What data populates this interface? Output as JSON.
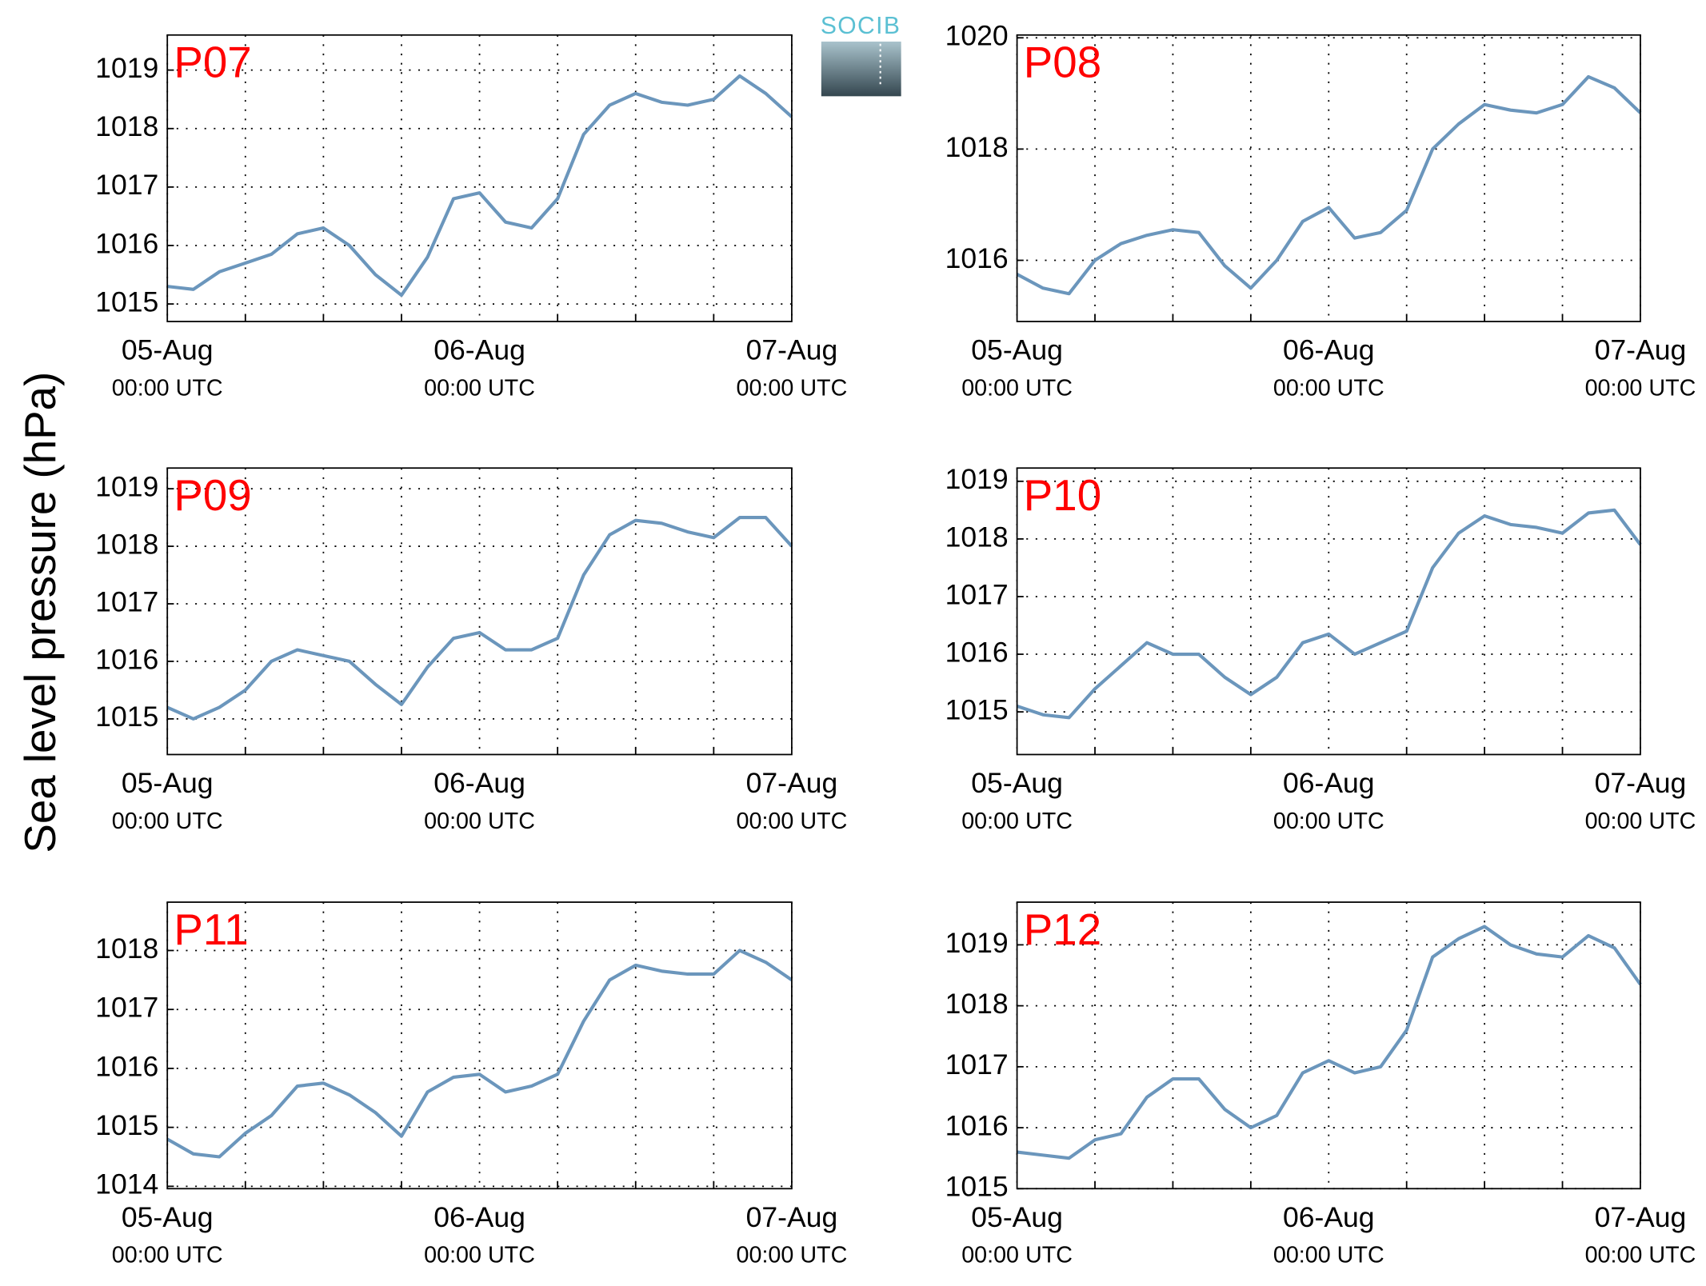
{
  "ylabel": "Sea level pressure (hPa)",
  "logo": "SOCIB",
  "chart_data": [
    {
      "type": "line",
      "title": "P07",
      "color": "#6b96bc",
      "grid": true,
      "x": [
        0,
        2,
        4,
        6,
        8,
        10,
        12,
        14,
        16,
        18,
        20,
        22,
        24,
        26,
        28,
        30,
        32,
        34,
        36,
        38,
        40,
        42,
        44,
        46,
        48
      ],
      "values": [
        1015.3,
        1015.25,
        1015.55,
        1015.7,
        1015.85,
        1016.2,
        1016.3,
        1016.0,
        1015.5,
        1015.15,
        1015.8,
        1016.8,
        1016.9,
        1016.4,
        1016.3,
        1016.8,
        1017.9,
        1018.4,
        1018.6,
        1018.45,
        1018.4,
        1018.5,
        1018.9,
        1018.6,
        1018.2
      ],
      "xlim": [
        0,
        48
      ],
      "xminor": [
        6,
        12,
        18,
        30,
        36,
        42
      ],
      "xticks": [
        {
          "value": 0,
          "label": [
            "05-Aug",
            "00:00 UTC"
          ]
        },
        {
          "value": 24,
          "label": [
            "06-Aug",
            "00:00 UTC"
          ]
        },
        {
          "value": 48,
          "label": [
            "07-Aug",
            "00:00 UTC"
          ]
        }
      ],
      "ylim": [
        1014.7,
        1019.6
      ],
      "yticks": [
        1015,
        1016,
        1017,
        1018,
        1019
      ]
    },
    {
      "type": "line",
      "title": "P08",
      "color": "#6b96bc",
      "grid": true,
      "x": [
        0,
        2,
        4,
        6,
        8,
        10,
        12,
        14,
        16,
        18,
        20,
        22,
        24,
        26,
        28,
        30,
        32,
        34,
        36,
        38,
        40,
        42,
        44,
        46,
        48
      ],
      "values": [
        1015.75,
        1015.5,
        1015.4,
        1016.0,
        1016.3,
        1016.45,
        1016.55,
        1016.5,
        1015.9,
        1015.5,
        1016.0,
        1016.7,
        1016.95,
        1016.4,
        1016.5,
        1016.9,
        1018.0,
        1018.45,
        1018.8,
        1018.7,
        1018.65,
        1018.8,
        1019.3,
        1019.1,
        1018.65
      ],
      "xlim": [
        0,
        48
      ],
      "xminor": [
        6,
        12,
        18,
        30,
        36,
        42
      ],
      "xticks": [
        {
          "value": 0,
          "label": [
            "05-Aug",
            "00:00 UTC"
          ]
        },
        {
          "value": 24,
          "label": [
            "06-Aug",
            "00:00 UTC"
          ]
        },
        {
          "value": 48,
          "label": [
            "07-Aug",
            "00:00 UTC"
          ]
        }
      ],
      "ylim": [
        1014.9,
        1020.05
      ],
      "yticks": [
        1016,
        1018,
        1020
      ]
    },
    {
      "type": "line",
      "title": "P09",
      "color": "#6b96bc",
      "grid": true,
      "x": [
        0,
        2,
        4,
        6,
        8,
        10,
        12,
        14,
        16,
        18,
        20,
        22,
        24,
        26,
        28,
        30,
        32,
        34,
        36,
        38,
        40,
        42,
        44,
        46,
        48
      ],
      "values": [
        1015.2,
        1015.0,
        1015.2,
        1015.5,
        1016.0,
        1016.2,
        1016.1,
        1016.0,
        1015.6,
        1015.25,
        1015.9,
        1016.4,
        1016.5,
        1016.2,
        1016.2,
        1016.4,
        1017.5,
        1018.2,
        1018.45,
        1018.4,
        1018.25,
        1018.15,
        1018.5,
        1018.5,
        1018.0
      ],
      "xlim": [
        0,
        48
      ],
      "xminor": [
        6,
        12,
        18,
        30,
        36,
        42
      ],
      "xticks": [
        {
          "value": 0,
          "label": [
            "05-Aug",
            "00:00 UTC"
          ]
        },
        {
          "value": 24,
          "label": [
            "06-Aug",
            "00:00 UTC"
          ]
        },
        {
          "value": 48,
          "label": [
            "07-Aug",
            "00:00 UTC"
          ]
        }
      ],
      "ylim": [
        1014.38,
        1019.36
      ],
      "yticks": [
        1015,
        1016,
        1017,
        1018,
        1019
      ]
    },
    {
      "type": "line",
      "title": "P10",
      "color": "#6b96bc",
      "grid": true,
      "x": [
        0,
        2,
        4,
        6,
        8,
        10,
        12,
        14,
        16,
        18,
        20,
        22,
        24,
        26,
        28,
        30,
        32,
        34,
        36,
        38,
        40,
        42,
        44,
        46,
        48
      ],
      "values": [
        1015.1,
        1014.95,
        1014.9,
        1015.4,
        1015.8,
        1016.2,
        1016.0,
        1016.0,
        1015.6,
        1015.3,
        1015.6,
        1016.2,
        1016.35,
        1016.0,
        1016.2,
        1016.4,
        1017.5,
        1018.1,
        1018.4,
        1018.25,
        1018.2,
        1018.1,
        1018.45,
        1018.5,
        1017.9
      ],
      "xlim": [
        0,
        48
      ],
      "xminor": [
        6,
        12,
        18,
        30,
        36,
        42
      ],
      "xticks": [
        {
          "value": 0,
          "label": [
            "05-Aug",
            "00:00 UTC"
          ]
        },
        {
          "value": 24,
          "label": [
            "06-Aug",
            "00:00 UTC"
          ]
        },
        {
          "value": 48,
          "label": [
            "07-Aug",
            "00:00 UTC"
          ]
        }
      ],
      "ylim": [
        1014.26,
        1019.23
      ],
      "yticks": [
        1015,
        1016,
        1017,
        1018,
        1019
      ]
    },
    {
      "type": "line",
      "title": "P11",
      "color": "#6b96bc",
      "grid": true,
      "x": [
        0,
        2,
        4,
        6,
        8,
        10,
        12,
        14,
        16,
        18,
        20,
        22,
        24,
        26,
        28,
        30,
        32,
        34,
        36,
        38,
        40,
        42,
        44,
        46,
        48
      ],
      "values": [
        1014.8,
        1014.55,
        1014.5,
        1014.9,
        1015.2,
        1015.7,
        1015.75,
        1015.55,
        1015.25,
        1014.85,
        1015.6,
        1015.85,
        1015.9,
        1015.6,
        1015.7,
        1015.9,
        1016.8,
        1017.5,
        1017.75,
        1017.65,
        1017.6,
        1017.6,
        1018.0,
        1017.8,
        1017.5
      ],
      "xlim": [
        0,
        48
      ],
      "xminor": [
        6,
        12,
        18,
        30,
        36,
        42
      ],
      "xticks": [
        {
          "value": 0,
          "label": [
            "05-Aug",
            "00:00 UTC"
          ]
        },
        {
          "value": 24,
          "label": [
            "06-Aug",
            "00:00 UTC"
          ]
        },
        {
          "value": 48,
          "label": [
            "07-Aug",
            "00:00 UTC"
          ]
        }
      ],
      "ylim": [
        1013.96,
        1018.82
      ],
      "yticks": [
        1014,
        1015,
        1016,
        1017,
        1018
      ]
    },
    {
      "type": "line",
      "title": "P12",
      "color": "#6b96bc",
      "grid": true,
      "x": [
        0,
        2,
        4,
        6,
        8,
        10,
        12,
        14,
        16,
        18,
        20,
        22,
        24,
        26,
        28,
        30,
        32,
        34,
        36,
        38,
        40,
        42,
        44,
        46,
        48
      ],
      "values": [
        1015.6,
        1015.55,
        1015.5,
        1015.8,
        1015.9,
        1016.5,
        1016.8,
        1016.8,
        1016.3,
        1016.0,
        1016.2,
        1016.9,
        1017.1,
        1016.9,
        1017.0,
        1017.6,
        1018.8,
        1019.1,
        1019.3,
        1019.0,
        1018.85,
        1018.8,
        1019.15,
        1018.95,
        1018.35
      ],
      "xlim": [
        0,
        48
      ],
      "xminor": [
        6,
        12,
        18,
        30,
        36,
        42
      ],
      "xticks": [
        {
          "value": 0,
          "label": [
            "05-Aug",
            "00:00 UTC"
          ]
        },
        {
          "value": 24,
          "label": [
            "06-Aug",
            "00:00 UTC"
          ]
        },
        {
          "value": 48,
          "label": [
            "07-Aug",
            "00:00 UTC"
          ]
        }
      ],
      "ylim": [
        1015.0,
        1019.7
      ],
      "yticks": [
        1015,
        1016,
        1017,
        1018,
        1019
      ]
    }
  ]
}
